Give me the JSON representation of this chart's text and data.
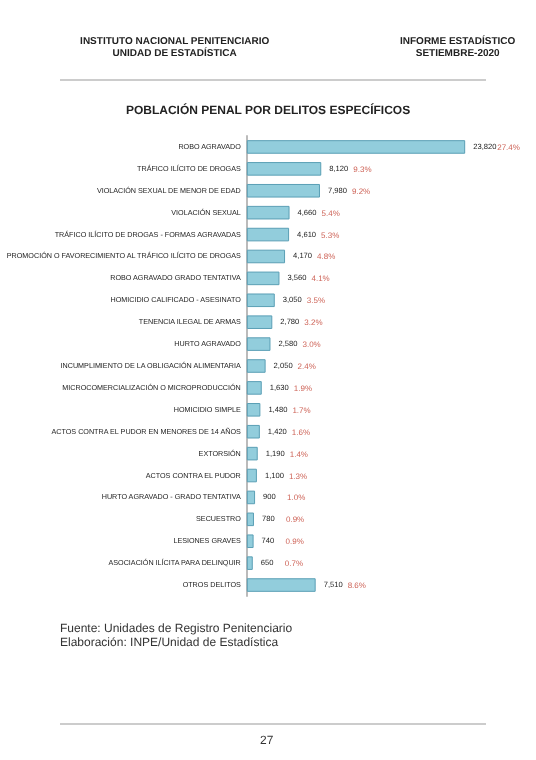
{
  "chart_data": {
    "type": "bar",
    "orientation": "horizontal",
    "title": "POBLACIÓN PENAL POR DELITOS ESPECÍFICOS",
    "categories": [
      "ROBO AGRAVADO",
      "TRÁFICO ILÍCITO DE DROGAS",
      "VIOLACIÓN SEXUAL DE MENOR DE EDAD",
      "VIOLACIÓN SEXUAL",
      "TRÁFICO ILÍCITO DE DROGAS - FORMAS AGRAVADAS",
      "PROMOCIÓN O FAVORECIMIENTO AL TRÁFICO ILÍCITO DE DROGAS",
      "ROBO AGRAVADO GRADO TENTATIVA",
      "HOMICIDIO CALIFICADO - ASESINATO",
      "TENENCIA ILEGAL DE ARMAS",
      "HURTO AGRAVADO",
      "INCUMPLIMIENTO DE LA OBLIGACIÓN ALIMENTARIA",
      "MICROCOMERCIALIZACIÓN O MICROPRODUCCIÓN",
      "HOMICIDIO SIMPLE",
      "ACTOS CONTRA EL PUDOR EN MENORES DE 14 AÑOS",
      "EXTORSIÓN",
      "ACTOS CONTRA EL PUDOR",
      "HURTO AGRAVADO - GRADO TENTATIVA",
      "SECUESTRO",
      "LESIONES GRAVES",
      "ASOCIACIÓN ILÍCITA PARA DELINQUIR",
      "OTROS DELITOS"
    ],
    "values": [
      23820,
      8120,
      7980,
      4660,
      4610,
      4170,
      3560,
      3050,
      2780,
      2580,
      2050,
      1630,
      1480,
      1420,
      1190,
      1100,
      900,
      780,
      740,
      650,
      7510
    ],
    "value_labels": [
      "23,820",
      "8,120",
      "7,980",
      "4,660",
      "4,610",
      "4,170",
      "3,560",
      "3,050",
      "2,780",
      "2,580",
      "2,050",
      "1,630",
      "1,480",
      "1,420",
      "1,190",
      "1,100",
      "900",
      "780",
      "740",
      "650",
      "7,510"
    ],
    "color": "#92cddc",
    "annotations": [
      "INSTITUTO NACIONAL PENITENCIARIO\nUNIDAD DE ESTADÍSTICA",
      "INFORME ESTADÍSTICO\nSETIEMBRE-2020",
      "Fuente: Unidades de Registro Penitenciario",
      "Elaboración: INPE/Unidad de Estadística",
      "27",
      "27.4%",
      "9.3%",
      "9.2%",
      "5.4%",
      "5.3%",
      "4.8%",
      "4.1%",
      "3.5%",
      "3.2%",
      "3.0%",
      "2.4%",
      "1.9%",
      "1.7%",
      "1.6%",
      "1.4%",
      "1.3%",
      "1.0%",
      "0.9%",
      "0.9%",
      "0.7%",
      "8.6%"
    ]
  }
}
